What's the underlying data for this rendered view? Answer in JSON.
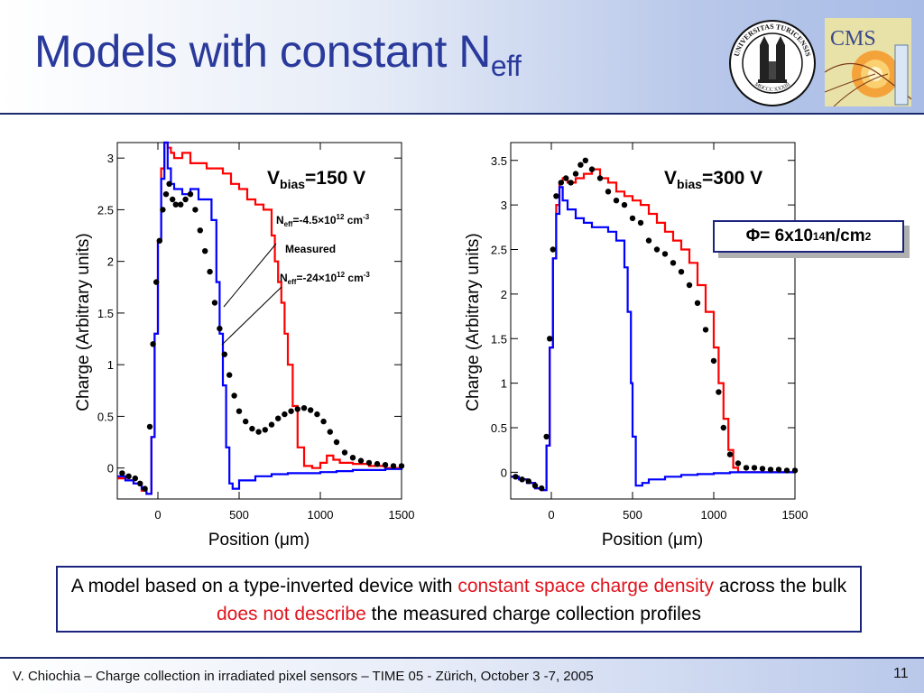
{
  "slide": {
    "title_main": "Models with constant N",
    "title_sub": "eff",
    "flux": {
      "symbol": "Φ",
      "text": " = 6x10",
      "exp1": "14",
      "unit": " n/cm",
      "exp2": "2"
    },
    "note": {
      "p1": "A model based on a type-inverted device with ",
      "hl1": "constant space charge density",
      "p2": " across the bulk ",
      "hl2": "does not describe",
      "p3": " the measured charge collection profiles"
    },
    "footer": "V. Chiochia – Charge collection in irradiated pixel sensors – TIME 05 - Zürich, October 3 -7, 2005",
    "page_number": "11",
    "logos": {
      "uzh_text": "UNIVERSITAS TURICENSIS",
      "uzh_year": "MDCCC XXXIII",
      "cms_text": "CMS"
    },
    "colors": {
      "title": "#2a3a9c",
      "highlight": "#e0141e",
      "frame": "#1a237e",
      "series_red": "#ff0000",
      "series_blue": "#0000ff"
    }
  },
  "chart_data": [
    {
      "type": "line",
      "title": "V_bias=150 V",
      "xlabel": "Position (μm)",
      "ylabel": "Charge (Arbitrary units)",
      "xlim": [
        -250,
        1500
      ],
      "ylim": [
        -0.3,
        3.15
      ],
      "xticks": [
        0,
        500,
        1000,
        1500
      ],
      "yticks": [
        0,
        0.5,
        1,
        1.5,
        2,
        2.5,
        3
      ],
      "xtick_labels": [
        "0",
        "500",
        "1000",
        "1500"
      ],
      "ytick_labels": [
        "0",
        "0.5",
        "1",
        "1.5",
        "2",
        "2.5",
        "3"
      ],
      "vbias_label": {
        "V": "V",
        "sub": "bias",
        "rest": "=150 V"
      },
      "annotations": [
        {
          "pre": "N",
          "sub": "eff",
          "mid": "=-4.5×10",
          "sup": "12",
          "post": " cm",
          "sup2": "-3"
        },
        {
          "text": "Measured"
        },
        {
          "pre": "N",
          "sub": "eff",
          "mid": "=-24×10",
          "sup": "12",
          "post": " cm",
          "sup2": "-3"
        }
      ],
      "series": [
        {
          "name": "N_eff=-4.5×10^12 cm^-3",
          "color": "#ff0000",
          "style": "line",
          "x": [
            -250,
            -200,
            -150,
            -100,
            -70,
            -40,
            -20,
            0,
            20,
            40,
            60,
            80,
            100,
            150,
            200,
            250,
            300,
            350,
            400,
            450,
            500,
            550,
            600,
            650,
            700,
            720,
            740,
            760,
            780,
            800,
            830,
            860,
            900,
            950,
            1000,
            1040,
            1080,
            1120,
            1200,
            1300,
            1400,
            1500
          ],
          "y": [
            -0.1,
            -0.12,
            -0.15,
            -0.22,
            -0.25,
            0.3,
            1.3,
            2.2,
            2.9,
            3.15,
            3.1,
            3.05,
            3.0,
            3.05,
            2.95,
            2.95,
            2.9,
            2.9,
            2.85,
            2.75,
            2.7,
            2.6,
            2.55,
            2.5,
            2.25,
            2.0,
            1.8,
            1.6,
            1.3,
            1.0,
            0.6,
            0.2,
            0.02,
            0.0,
            0.05,
            0.12,
            0.08,
            0.05,
            0.04,
            0.02,
            0.0,
            0.0
          ]
        },
        {
          "name": "N_eff=-24×10^12 cm^-3",
          "color": "#0000ff",
          "style": "line",
          "x": [
            -250,
            -200,
            -150,
            -100,
            -70,
            -40,
            -20,
            0,
            20,
            40,
            60,
            80,
            100,
            150,
            200,
            250,
            300,
            330,
            360,
            380,
            400,
            420,
            440,
            460,
            500,
            600,
            700,
            800,
            900,
            1000,
            1100,
            1200,
            1300,
            1400,
            1500
          ],
          "y": [
            -0.08,
            -0.12,
            -0.15,
            -0.2,
            -0.25,
            0.3,
            1.3,
            2.2,
            2.8,
            3.15,
            2.9,
            2.75,
            2.7,
            2.65,
            2.7,
            2.6,
            2.6,
            2.4,
            1.8,
            1.3,
            0.8,
            0.2,
            -0.15,
            -0.2,
            -0.12,
            -0.08,
            -0.06,
            -0.05,
            -0.05,
            -0.04,
            -0.03,
            -0.02,
            -0.02,
            -0.01,
            0.0
          ]
        },
        {
          "name": "Measured",
          "color": "#000000",
          "style": "marker",
          "x": [
            -220,
            -180,
            -140,
            -110,
            -80,
            -50,
            -30,
            -10,
            10,
            30,
            50,
            70,
            90,
            110,
            140,
            170,
            200,
            230,
            260,
            290,
            320,
            350,
            380,
            410,
            440,
            470,
            500,
            540,
            580,
            620,
            660,
            700,
            740,
            780,
            820,
            860,
            900,
            940,
            980,
            1020,
            1060,
            1100,
            1150,
            1200,
            1250,
            1300,
            1350,
            1400,
            1450,
            1500
          ],
          "y": [
            -0.05,
            -0.08,
            -0.1,
            -0.15,
            -0.2,
            0.4,
            1.2,
            1.8,
            2.2,
            2.5,
            2.65,
            2.75,
            2.6,
            2.55,
            2.55,
            2.6,
            2.65,
            2.5,
            2.3,
            2.1,
            1.9,
            1.6,
            1.35,
            1.1,
            0.9,
            0.7,
            0.55,
            0.45,
            0.38,
            0.35,
            0.37,
            0.42,
            0.48,
            0.52,
            0.55,
            0.57,
            0.58,
            0.56,
            0.52,
            0.45,
            0.35,
            0.25,
            0.15,
            0.1,
            0.07,
            0.05,
            0.04,
            0.03,
            0.02,
            0.02
          ]
        }
      ]
    },
    {
      "type": "line",
      "title": "V_bias=300 V",
      "xlabel": "Position (μm)",
      "ylabel": "Charge (Arbitrary units)",
      "xlim": [
        -250,
        1500
      ],
      "ylim": [
        -0.3,
        3.7
      ],
      "xticks": [
        0,
        500,
        1000,
        1500
      ],
      "yticks": [
        0,
        0.5,
        1,
        1.5,
        2,
        2.5,
        3,
        3.5
      ],
      "xtick_labels": [
        "0",
        "500",
        "1000",
        "1500"
      ],
      "ytick_labels": [
        "0",
        "0.5",
        "1",
        "1.5",
        "2",
        "2.5",
        "3",
        "3.5"
      ],
      "vbias_label": {
        "V": "V",
        "sub": "bias",
        "rest": "=300 V"
      },
      "series": [
        {
          "name": "red model",
          "color": "#ff0000",
          "style": "line",
          "x": [
            -250,
            -200,
            -150,
            -100,
            -60,
            -30,
            -10,
            10,
            30,
            50,
            70,
            100,
            150,
            200,
            250,
            300,
            350,
            400,
            450,
            500,
            550,
            600,
            650,
            700,
            750,
            800,
            850,
            900,
            950,
            1000,
            1030,
            1060,
            1090,
            1120,
            1150,
            1200,
            1300,
            1400,
            1500
          ],
          "y": [
            -0.05,
            -0.08,
            -0.12,
            -0.18,
            -0.2,
            0.3,
            1.4,
            2.4,
            3.0,
            3.25,
            3.3,
            3.25,
            3.3,
            3.35,
            3.4,
            3.3,
            3.25,
            3.15,
            3.1,
            3.05,
            3.0,
            2.9,
            2.8,
            2.7,
            2.6,
            2.5,
            2.35,
            2.1,
            1.8,
            1.4,
            1.0,
            0.6,
            0.25,
            0.05,
            0.0,
            0.0,
            0.0,
            0.0,
            0.0
          ]
        },
        {
          "name": "blue model",
          "color": "#0000ff",
          "style": "line",
          "x": [
            -250,
            -200,
            -150,
            -100,
            -60,
            -30,
            -10,
            10,
            30,
            50,
            70,
            100,
            150,
            200,
            250,
            300,
            350,
            400,
            450,
            470,
            490,
            500,
            520,
            540,
            560,
            600,
            700,
            800,
            900,
            1000,
            1100,
            1200,
            1300,
            1400,
            1500
          ],
          "y": [
            -0.05,
            -0.08,
            -0.12,
            -0.18,
            -0.2,
            0.3,
            1.4,
            2.4,
            2.9,
            3.2,
            3.05,
            2.95,
            2.85,
            2.8,
            2.75,
            2.75,
            2.7,
            2.6,
            2.3,
            1.8,
            1.0,
            0.4,
            -0.15,
            -0.15,
            -0.12,
            -0.08,
            -0.05,
            -0.03,
            -0.02,
            -0.01,
            0.0,
            0.0,
            0.0,
            0.0,
            0.0
          ]
        },
        {
          "name": "Measured",
          "color": "#000000",
          "style": "marker",
          "x": [
            -220,
            -180,
            -140,
            -100,
            -60,
            -30,
            -10,
            10,
            30,
            60,
            90,
            120,
            150,
            180,
            210,
            250,
            300,
            350,
            400,
            450,
            500,
            550,
            600,
            650,
            700,
            750,
            800,
            850,
            900,
            950,
            1000,
            1030,
            1060,
            1100,
            1150,
            1200,
            1250,
            1300,
            1350,
            1400,
            1450,
            1500
          ],
          "y": [
            -0.05,
            -0.08,
            -0.1,
            -0.15,
            -0.18,
            0.4,
            1.5,
            2.5,
            3.1,
            3.25,
            3.3,
            3.25,
            3.35,
            3.45,
            3.5,
            3.4,
            3.3,
            3.15,
            3.05,
            3.0,
            2.85,
            2.8,
            2.6,
            2.5,
            2.45,
            2.35,
            2.25,
            2.1,
            1.9,
            1.6,
            1.25,
            0.9,
            0.5,
            0.2,
            0.1,
            0.05,
            0.05,
            0.04,
            0.03,
            0.03,
            0.02,
            0.02
          ]
        }
      ]
    }
  ]
}
